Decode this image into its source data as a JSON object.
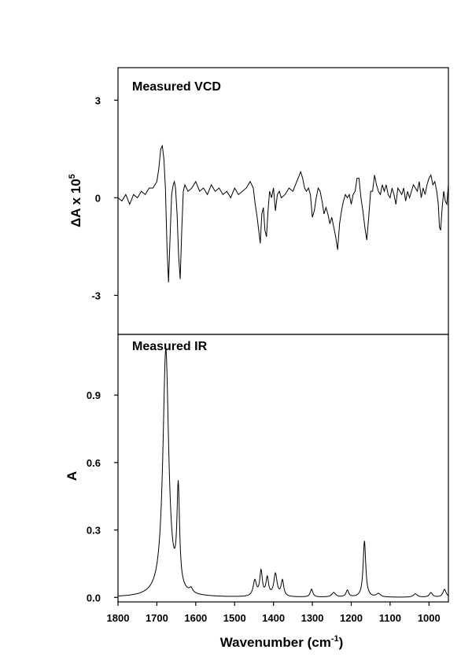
{
  "chart_data": [
    {
      "type": "line",
      "title": "Measured VCD",
      "ylabel_prefix": "ΔA x 10",
      "ylabel_exponent": "5",
      "xlim": [
        1800,
        950
      ],
      "ylim": [
        -4.2,
        4.0
      ],
      "yticks": [
        "3",
        "0",
        "-3"
      ],
      "ytick_values": [
        3,
        0,
        -3
      ],
      "series": [
        {
          "x": [
            1800,
            1790,
            1780,
            1770,
            1760,
            1750,
            1740,
            1730,
            1720,
            1710,
            1700,
            1695,
            1690,
            1686,
            1682,
            1678,
            1674,
            1670,
            1666,
            1662,
            1658,
            1655,
            1652,
            1648,
            1644,
            1640,
            1636,
            1632,
            1628,
            1624,
            1620,
            1610,
            1600,
            1590,
            1580,
            1570,
            1560,
            1550,
            1540,
            1530,
            1520,
            1510,
            1500,
            1490,
            1480,
            1470,
            1460,
            1452,
            1447,
            1442,
            1438,
            1434,
            1430,
            1426,
            1422,
            1418,
            1414,
            1410,
            1405,
            1400,
            1395,
            1390,
            1385,
            1380,
            1370,
            1360,
            1350,
            1340,
            1330,
            1325,
            1320,
            1315,
            1310,
            1305,
            1300,
            1295,
            1290,
            1285,
            1280,
            1275,
            1270,
            1265,
            1260,
            1255,
            1250,
            1245,
            1240,
            1235,
            1230,
            1225,
            1220,
            1215,
            1210,
            1205,
            1200,
            1195,
            1190,
            1185,
            1180,
            1175,
            1170,
            1165,
            1160,
            1155,
            1150,
            1145,
            1140,
            1135,
            1130,
            1125,
            1120,
            1115,
            1110,
            1105,
            1100,
            1095,
            1090,
            1085,
            1080,
            1075,
            1070,
            1065,
            1060,
            1055,
            1050,
            1045,
            1040,
            1035,
            1030,
            1025,
            1020,
            1015,
            1010,
            1005,
            1000,
            995,
            990,
            985,
            980,
            976,
            973,
            970,
            966,
            962,
            958,
            954,
            950
          ],
          "y": [
            0.0,
            -0.1,
            0.1,
            -0.2,
            0.1,
            0.0,
            0.2,
            0.1,
            0.3,
            0.3,
            0.5,
            0.9,
            1.5,
            1.6,
            1.2,
            0.3,
            -1.5,
            -2.6,
            -1.2,
            0.1,
            0.4,
            0.5,
            0.3,
            -0.5,
            -1.8,
            -2.5,
            -1.0,
            0.2,
            0.4,
            0.3,
            0.2,
            0.3,
            0.5,
            0.2,
            0.3,
            0.1,
            0.4,
            0.2,
            0.3,
            0.1,
            0.2,
            0.0,
            0.3,
            0.1,
            0.2,
            0.3,
            0.5,
            0.3,
            -0.2,
            -0.6,
            -1.0,
            -1.4,
            -0.5,
            -0.3,
            -1.0,
            -1.2,
            -0.4,
            0.2,
            0.0,
            0.3,
            -0.4,
            0.1,
            0.2,
            0.0,
            0.1,
            0.3,
            0.2,
            0.5,
            0.8,
            0.6,
            0.3,
            0.2,
            0.3,
            0.1,
            -0.6,
            -0.4,
            0.0,
            0.3,
            0.2,
            -0.1,
            -0.5,
            -0.3,
            -0.5,
            -0.8,
            -0.6,
            -0.9,
            -1.2,
            -1.6,
            -0.8,
            -0.4,
            -0.1,
            0.1,
            0.0,
            0.1,
            -0.2,
            0.1,
            0.2,
            0.6,
            0.6,
            0.0,
            -0.4,
            -0.9,
            -1.3,
            -0.6,
            0.2,
            0.2,
            0.7,
            0.4,
            0.2,
            0.1,
            0.4,
            0.2,
            0.4,
            0.1,
            0.0,
            0.3,
            0.1,
            -0.2,
            0.3,
            0.2,
            0.1,
            0.3,
            -0.1,
            0.2,
            0.0,
            0.2,
            0.4,
            0.3,
            0.2,
            0.5,
            0.0,
            0.3,
            0.1,
            0.4,
            0.6,
            0.7,
            0.4,
            0.5,
            0.2,
            -0.2,
            -0.9,
            -1.0,
            -0.3,
            0.2,
            -0.1,
            -0.2,
            0.4
          ]
        }
      ]
    },
    {
      "type": "line",
      "title": "Measured IR",
      "ylabel": "A",
      "xlabel_prefix": "Wavenumber (cm",
      "xlabel_exponent": "-1",
      "xlabel_suffix": ")",
      "xlim": [
        1800,
        950
      ],
      "ylim": [
        -0.02,
        1.17
      ],
      "yticks": [
        "0.9",
        "0.6",
        "0.3",
        "0.0"
      ],
      "ytick_values": [
        0.9,
        0.6,
        0.3,
        0.0
      ],
      "xticks": [
        "1800",
        "1700",
        "1600",
        "1500",
        "1400",
        "1300",
        "1200",
        "1100",
        "1000"
      ],
      "xtick_values": [
        1800,
        1700,
        1600,
        1500,
        1400,
        1300,
        1200,
        1100,
        1000
      ],
      "peaks": [
        {
          "center": 1677,
          "height": 1.1,
          "width": 9
        },
        {
          "center": 1645,
          "height": 0.44,
          "width": 4
        },
        {
          "center": 1612,
          "height": 0.02,
          "width": 5
        },
        {
          "center": 1448,
          "height": 0.07,
          "width": 5
        },
        {
          "center": 1432,
          "height": 0.11,
          "width": 4
        },
        {
          "center": 1416,
          "height": 0.08,
          "width": 4
        },
        {
          "center": 1395,
          "height": 0.1,
          "width": 5
        },
        {
          "center": 1377,
          "height": 0.07,
          "width": 4
        },
        {
          "center": 1302,
          "height": 0.035,
          "width": 4
        },
        {
          "center": 1245,
          "height": 0.02,
          "width": 6
        },
        {
          "center": 1210,
          "height": 0.03,
          "width": 4
        },
        {
          "center": 1166,
          "height": 0.25,
          "width": 4
        },
        {
          "center": 1130,
          "height": 0.015,
          "width": 6
        },
        {
          "center": 1035,
          "height": 0.015,
          "width": 6
        },
        {
          "center": 995,
          "height": 0.02,
          "width": 5
        },
        {
          "center": 960,
          "height": 0.035,
          "width": 5
        }
      ]
    }
  ]
}
